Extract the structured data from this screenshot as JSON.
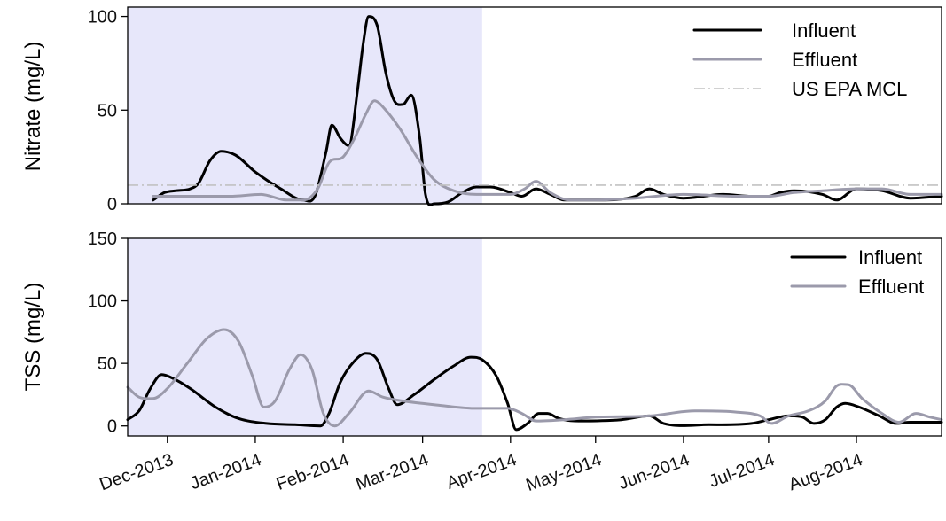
{
  "colors": {
    "influent": "#000000",
    "effluent": "#9b9aab",
    "mcl": "#c2c2c2",
    "shade": "#e7e7fa"
  },
  "chart_data": [
    {
      "type": "line",
      "ylabel": "Nitrate (mg/L)",
      "ylim": [
        0,
        105
      ],
      "yticks": [
        0,
        50,
        100
      ],
      "xlim": [
        "2013-11-17",
        "2014-08-31"
      ],
      "shaded_period": [
        "2013-11-17",
        "2014-03-22"
      ],
      "legend_position": "top-right",
      "series": [
        {
          "name": "Influent",
          "color_key": "influent",
          "points": [
            [
              "2013-11-26",
              2
            ],
            [
              "2013-11-30",
              6
            ],
            [
              "2013-12-04",
              7
            ],
            [
              "2013-12-09",
              8
            ],
            [
              "2013-12-12",
              11
            ],
            [
              "2013-12-16",
              23
            ],
            [
              "2013-12-20",
              28
            ],
            [
              "2013-12-25",
              26
            ],
            [
              "2014-01-01",
              17
            ],
            [
              "2014-01-10",
              8
            ],
            [
              "2014-01-18",
              2
            ],
            [
              "2014-01-22",
              4
            ],
            [
              "2014-01-26",
              28
            ],
            [
              "2014-01-28",
              42
            ],
            [
              "2014-01-31",
              35
            ],
            [
              "2014-02-03",
              31
            ],
            [
              "2014-02-06",
              60
            ],
            [
              "2014-02-08",
              85
            ],
            [
              "2014-02-10",
              100
            ],
            [
              "2014-02-13",
              95
            ],
            [
              "2014-02-16",
              70
            ],
            [
              "2014-02-19",
              55
            ],
            [
              "2014-02-22",
              53
            ],
            [
              "2014-02-25",
              58
            ],
            [
              "2014-02-28",
              35
            ],
            [
              "2014-03-02",
              5
            ],
            [
              "2014-03-05",
              0
            ],
            [
              "2014-03-10",
              1
            ],
            [
              "2014-03-15",
              6
            ],
            [
              "2014-03-20",
              9
            ],
            [
              "2014-03-25",
              9
            ],
            [
              "2014-04-01",
              6
            ],
            [
              "2014-04-05",
              4
            ],
            [
              "2014-04-10",
              8
            ],
            [
              "2014-04-15",
              5
            ],
            [
              "2014-04-20",
              2
            ],
            [
              "2014-05-01",
              2
            ],
            [
              "2014-05-15",
              4
            ],
            [
              "2014-05-20",
              8
            ],
            [
              "2014-05-25",
              5
            ],
            [
              "2014-06-01",
              3
            ],
            [
              "2014-06-15",
              5
            ],
            [
              "2014-06-25",
              4
            ],
            [
              "2014-07-01",
              4
            ],
            [
              "2014-07-05",
              6
            ],
            [
              "2014-07-10",
              7
            ],
            [
              "2014-07-20",
              5
            ],
            [
              "2014-07-25",
              2
            ],
            [
              "2014-08-01",
              8
            ],
            [
              "2014-08-10",
              7
            ],
            [
              "2014-08-20",
              3
            ],
            [
              "2014-08-31",
              4
            ]
          ]
        },
        {
          "name": "Effluent",
          "color_key": "effluent",
          "points": [
            [
              "2013-11-26",
              4
            ],
            [
              "2013-12-09",
              4
            ],
            [
              "2013-12-23",
              4
            ],
            [
              "2014-01-03",
              5
            ],
            [
              "2014-01-12",
              2
            ],
            [
              "2014-01-18",
              2
            ],
            [
              "2014-01-23",
              8
            ],
            [
              "2014-01-27",
              22
            ],
            [
              "2014-02-01",
              25
            ],
            [
              "2014-02-05",
              35
            ],
            [
              "2014-02-09",
              48
            ],
            [
              "2014-02-12",
              55
            ],
            [
              "2014-02-16",
              50
            ],
            [
              "2014-02-21",
              40
            ],
            [
              "2014-02-27",
              25
            ],
            [
              "2014-03-05",
              13
            ],
            [
              "2014-03-12",
              7
            ],
            [
              "2014-03-20",
              5
            ],
            [
              "2014-04-01",
              5
            ],
            [
              "2014-04-06",
              8
            ],
            [
              "2014-04-10",
              12
            ],
            [
              "2014-04-15",
              6
            ],
            [
              "2014-04-22",
              2
            ],
            [
              "2014-05-01",
              2
            ],
            [
              "2014-05-15",
              3
            ],
            [
              "2014-06-01",
              5
            ],
            [
              "2014-06-20",
              4
            ],
            [
              "2014-07-01",
              4
            ],
            [
              "2014-07-10",
              6
            ],
            [
              "2014-07-20",
              7
            ],
            [
              "2014-08-01",
              8
            ],
            [
              "2014-08-10",
              8
            ],
            [
              "2014-08-20",
              5
            ],
            [
              "2014-08-31",
              5
            ]
          ]
        },
        {
          "name": "US EPA MCL",
          "color_key": "mcl",
          "style": "dash-dot",
          "points": [
            [
              "2013-11-17",
              10
            ],
            [
              "2014-08-31",
              10
            ]
          ]
        }
      ]
    },
    {
      "type": "line",
      "ylabel": "TSS (mg/L)",
      "ylim": [
        -8,
        150
      ],
      "yticks": [
        0,
        50,
        100,
        150
      ],
      "xlim": [
        "2013-11-17",
        "2014-08-31"
      ],
      "shaded_period": [
        "2013-11-17",
        "2014-03-22"
      ],
      "legend_position": "top-right",
      "xtick_labels": [
        "Dec-2013",
        "Jan-2014",
        "Feb-2014",
        "Mar-2014",
        "Apr-2014",
        "May-2014",
        "Jun-2014",
        "Jul-2014",
        "Aug-2014"
      ],
      "xtick_dates": [
        "2013-12-01",
        "2014-01-01",
        "2014-02-01",
        "2014-03-01",
        "2014-04-01",
        "2014-05-01",
        "2014-06-01",
        "2014-07-01",
        "2014-08-01"
      ],
      "series": [
        {
          "name": "Influent",
          "color_key": "influent",
          "points": [
            [
              "2013-11-17",
              5
            ],
            [
              "2013-11-21",
              12
            ],
            [
              "2013-11-25",
              30
            ],
            [
              "2013-11-29",
              41
            ],
            [
              "2013-12-03",
              38
            ],
            [
              "2013-12-09",
              30
            ],
            [
              "2013-12-18",
              15
            ],
            [
              "2013-12-26",
              6
            ],
            [
              "2014-01-05",
              2
            ],
            [
              "2014-01-15",
              1
            ],
            [
              "2014-01-24",
              0
            ],
            [
              "2014-01-27",
              10
            ],
            [
              "2014-01-31",
              35
            ],
            [
              "2014-02-05",
              52
            ],
            [
              "2014-02-09",
              58
            ],
            [
              "2014-02-13",
              53
            ],
            [
              "2014-02-17",
              30
            ],
            [
              "2014-02-20",
              17
            ],
            [
              "2014-02-26",
              25
            ],
            [
              "2014-03-05",
              37
            ],
            [
              "2014-03-12",
              48
            ],
            [
              "2014-03-18",
              55
            ],
            [
              "2014-03-22",
              53
            ],
            [
              "2014-03-27",
              40
            ],
            [
              "2014-03-31",
              18
            ],
            [
              "2014-04-03",
              -3
            ],
            [
              "2014-04-07",
              2
            ],
            [
              "2014-04-11",
              10
            ],
            [
              "2014-04-14",
              10
            ],
            [
              "2014-04-18",
              6
            ],
            [
              "2014-04-25",
              4
            ],
            [
              "2014-05-10",
              5
            ],
            [
              "2014-05-20",
              8
            ],
            [
              "2014-05-25",
              2
            ],
            [
              "2014-06-10",
              1
            ],
            [
              "2014-06-25",
              2
            ],
            [
              "2014-07-01",
              5
            ],
            [
              "2014-07-08",
              8
            ],
            [
              "2014-07-13",
              7
            ],
            [
              "2014-07-17",
              2
            ],
            [
              "2014-07-21",
              5
            ],
            [
              "2014-07-25",
              15
            ],
            [
              "2014-07-28",
              18
            ],
            [
              "2014-08-02",
              15
            ],
            [
              "2014-08-09",
              8
            ],
            [
              "2014-08-15",
              2
            ],
            [
              "2014-08-20",
              3
            ],
            [
              "2014-08-31",
              3
            ]
          ]
        },
        {
          "name": "Effluent",
          "color_key": "effluent",
          "points": [
            [
              "2013-11-17",
              31
            ],
            [
              "2013-11-21",
              23
            ],
            [
              "2013-11-26",
              22
            ],
            [
              "2013-12-01",
              30
            ],
            [
              "2013-12-08",
              50
            ],
            [
              "2013-12-15",
              70
            ],
            [
              "2013-12-21",
              77
            ],
            [
              "2013-12-26",
              68
            ],
            [
              "2013-12-31",
              40
            ],
            [
              "2014-01-04",
              15
            ],
            [
              "2014-01-08",
              20
            ],
            [
              "2014-01-13",
              45
            ],
            [
              "2014-01-17",
              57
            ],
            [
              "2014-01-21",
              45
            ],
            [
              "2014-01-25",
              10
            ],
            [
              "2014-01-29",
              0
            ],
            [
              "2014-02-03",
              10
            ],
            [
              "2014-02-10",
              28
            ],
            [
              "2014-02-15",
              23
            ],
            [
              "2014-02-22",
              20
            ],
            [
              "2014-03-05",
              17
            ],
            [
              "2014-03-20",
              14
            ],
            [
              "2014-03-31",
              14
            ],
            [
              "2014-04-05",
              10
            ],
            [
              "2014-04-10",
              4
            ],
            [
              "2014-04-20",
              5
            ],
            [
              "2014-05-01",
              7
            ],
            [
              "2014-05-20",
              8
            ],
            [
              "2014-06-05",
              12
            ],
            [
              "2014-06-20",
              11
            ],
            [
              "2014-06-28",
              8
            ],
            [
              "2014-07-02",
              2
            ],
            [
              "2014-07-08",
              8
            ],
            [
              "2014-07-15",
              12
            ],
            [
              "2014-07-21",
              20
            ],
            [
              "2014-07-25",
              32
            ],
            [
              "2014-07-29",
              33
            ],
            [
              "2014-08-03",
              22
            ],
            [
              "2014-08-10",
              10
            ],
            [
              "2014-08-16",
              3
            ],
            [
              "2014-08-22",
              10
            ],
            [
              "2014-08-27",
              7
            ],
            [
              "2014-08-31",
              5
            ]
          ]
        }
      ]
    }
  ]
}
